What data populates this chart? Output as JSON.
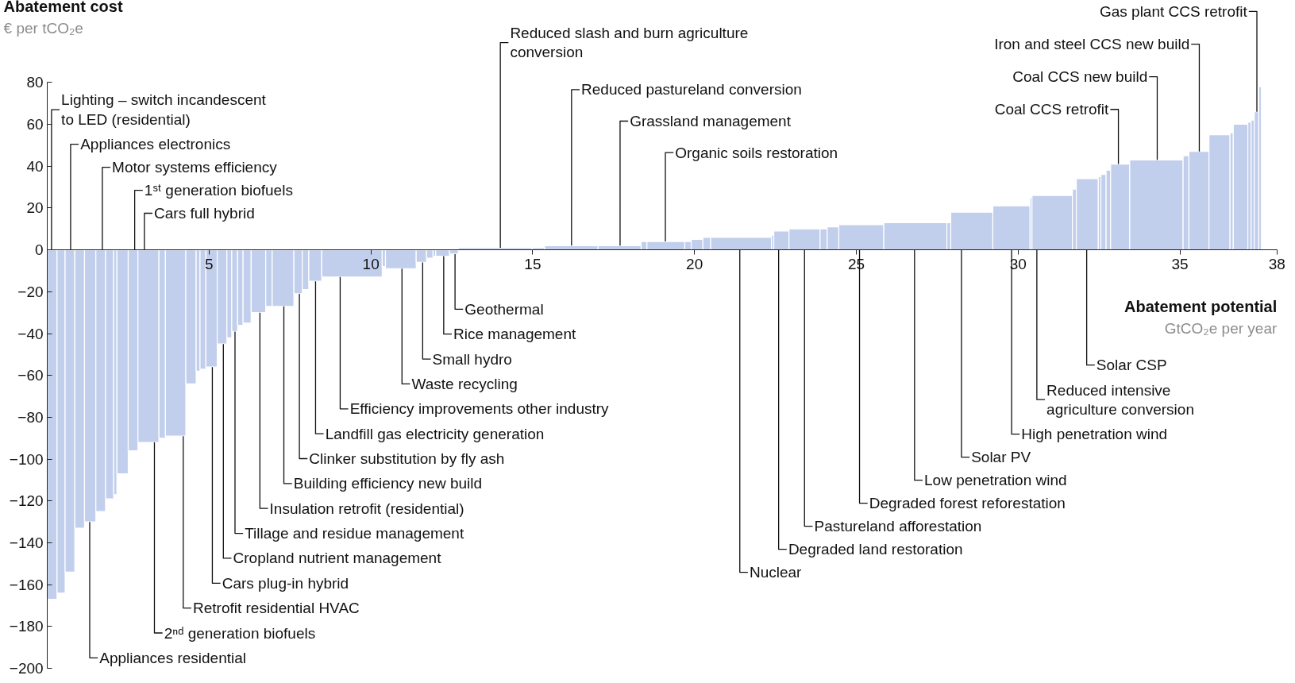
{
  "chart_data": {
    "type": "histogram",
    "bins": [
      0,
      0.3,
      0.55,
      0.85,
      1.15,
      1.5,
      1.8,
      2.05,
      2.15,
      2.5,
      2.8,
      3.45,
      3.65,
      4.28,
      4.6,
      4.72,
      4.9,
      5.25,
      5.55,
      5.7,
      5.88,
      6.05,
      6.3,
      6.75,
      6.95,
      7.62,
      7.88,
      8.08,
      8.48,
      10.35,
      10.45,
      11.4,
      11.72,
      11.92,
      12.0,
      12.43,
      12.7,
      14.98,
      15.37,
      17.02,
      18.35,
      18.53,
      19.7,
      19.9,
      20.26,
      20.5,
      22.38,
      22.45,
      22.92,
      23.88,
      24.1,
      24.46,
      25.85,
      27.8,
      27.92,
      29.22,
      30.37,
      30.43,
      31.68,
      31.8,
      32.48,
      32.56,
      32.72,
      32.86,
      33.45,
      35.1,
      35.28,
      35.9,
      36.55,
      36.65,
      37.1,
      37.2,
      37.3,
      37.44,
      37.52
    ],
    "values": [
      -167,
      -164,
      -154,
      -133,
      -130,
      -125,
      -119,
      -117,
      -107,
      -96,
      -92,
      -90,
      -89,
      -64,
      -58,
      -57,
      -56,
      -45,
      -42,
      -39,
      -36,
      -35,
      -30,
      -27,
      -27,
      -21,
      -19,
      -15,
      -13,
      -8,
      -9,
      -6,
      -4,
      -3,
      -3,
      -2,
      1,
      1,
      2,
      2,
      4,
      4,
      4,
      5,
      6,
      6,
      7,
      9,
      10,
      10,
      11,
      12,
      13,
      13,
      18,
      21,
      25,
      26,
      29,
      34,
      35,
      36,
      38,
      41,
      43,
      45,
      47,
      55,
      56,
      60,
      61,
      62,
      66,
      78
    ],
    "color": "#c2cfec",
    "xlabel": "Abatement potential\nGtCO₂e per year",
    "ylabel": "Abatement cost\n€ per tCO₂e",
    "xlim": [
      0,
      38
    ],
    "xticks": [
      5,
      10,
      15,
      20,
      25,
      30,
      35,
      38
    ],
    "ylim": [
      -200,
      80
    ],
    "yticks": [
      -200,
      -180,
      -160,
      -140,
      -120,
      -100,
      -80,
      -60,
      -40,
      -20,
      0,
      20,
      40,
      60,
      80
    ],
    "annotations": [
      {
        "text": "Lighting – switch incandescent\nto LED (residential)",
        "x": 0.13,
        "y": 0
      },
      {
        "text": "Appliances electronics",
        "x": 0.72,
        "y": 0
      },
      {
        "text": "Motor systems efficiency",
        "x": 1.7,
        "y": 0
      },
      {
        "text": "1ˢᵗ generation biofuels",
        "x": 2.7,
        "y": 0
      },
      {
        "text": "Cars full hybrid",
        "x": 3.0,
        "y": 0
      },
      {
        "text": "Appliances residential",
        "x": 1.31,
        "y": -130
      },
      {
        "text": "2ⁿᵈ generation biofuels",
        "x": 3.31,
        "y": -92
      },
      {
        "text": "Retrofit residential HVAC",
        "x": 4.2,
        "y": -89
      },
      {
        "text": "Cars plug-in hybrid",
        "x": 5.1,
        "y": -56
      },
      {
        "text": "Cropland nutrient management",
        "x": 5.44,
        "y": -45
      },
      {
        "text": "Tillage and residue management",
        "x": 5.8,
        "y": -39
      },
      {
        "text": "Insulation retrofit (residential)",
        "x": 6.57,
        "y": -30
      },
      {
        "text": "Building efficiency new build",
        "x": 7.31,
        "y": -27
      },
      {
        "text": "Clinker substitution by fly ash",
        "x": 7.79,
        "y": -21
      },
      {
        "text": "Landfill gas electricity generation",
        "x": 8.29,
        "y": -15
      },
      {
        "text": "Efficiency improvements other industry",
        "x": 9.05,
        "y": -13
      },
      {
        "text": "Waste recycling",
        "x": 10.96,
        "y": -9
      },
      {
        "text": "Small hydro",
        "x": 11.6,
        "y": -6
      },
      {
        "text": "Rice management",
        "x": 12.25,
        "y": -3
      },
      {
        "text": "Geothermal",
        "x": 12.6,
        "y": -2
      },
      {
        "text": "Reduced slash and burn agriculture\nconversion",
        "x": 14.0,
        "y": 1
      },
      {
        "text": "Reduced pastureland conversion",
        "x": 16.2,
        "y": 2
      },
      {
        "text": "Grassland management",
        "x": 17.7,
        "y": 2
      },
      {
        "text": "Organic soils restoration",
        "x": 19.1,
        "y": 4
      },
      {
        "text": "Nuclear",
        "x": 21.4,
        "y": 0
      },
      {
        "text": "Degraded land restoration",
        "x": 22.6,
        "y": 0
      },
      {
        "text": "Pastureland afforestation",
        "x": 23.4,
        "y": 0
      },
      {
        "text": "Degraded forest reforestation",
        "x": 25.1,
        "y": 0
      },
      {
        "text": "Low penetration wind",
        "x": 26.8,
        "y": 0
      },
      {
        "text": "Solar PV",
        "x": 28.25,
        "y": 0
      },
      {
        "text": "High penetration wind",
        "x": 29.8,
        "y": 0
      },
      {
        "text": "Reduced intensive\nagriculture conversion",
        "x": 30.58,
        "y": 0
      },
      {
        "text": "Solar CSP",
        "x": 32.12,
        "y": 0
      },
      {
        "text": "Coal CCS retrofit",
        "x": 33.1,
        "y": 41
      },
      {
        "text": "Coal CCS new build",
        "x": 34.3,
        "y": 43
      },
      {
        "text": "Iron and steel CCS new build",
        "x": 35.6,
        "y": 47
      },
      {
        "text": "Gas plant CCS retrofit",
        "x": 37.38,
        "y": 66
      }
    ]
  }
}
